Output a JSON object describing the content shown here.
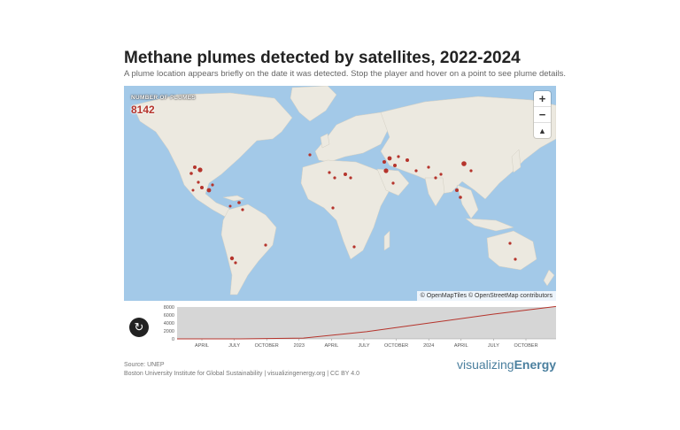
{
  "title": "Methane plumes detected by satellites, 2022-2024",
  "subtitle": "A plume location appears briefly on the date it was detected. Stop the player and hover on a point to see plume details.",
  "counter": {
    "label": "NUMBER OF PLUMES",
    "value": "8142"
  },
  "map_controls": {
    "zoom_in": "+",
    "zoom_out": "−",
    "reset_north": "▲"
  },
  "attribution": "© OpenMapTiles © OpenStreetMap contributors",
  "timeline": {
    "y_ticks": [
      "8000",
      "6000",
      "4000",
      "2000",
      "0"
    ],
    "x_ticks": [
      "APRIL",
      "JULY",
      "OCTOBER",
      "2023",
      "APRIL",
      "JULY",
      "OCTOBER",
      "2024",
      "APRIL",
      "JULY",
      "OCTOBER"
    ],
    "replay_icon": "replay-icon"
  },
  "source": {
    "line1": "Source: UNEP",
    "line2": "Boston University Institute for Global Sustainability | visualizingenergy.org | CC BY 4.0"
  },
  "brand": {
    "part1": "visualizing",
    "part2": "Energy"
  },
  "colors": {
    "ocean": "#a3c9e8",
    "land": "#ece9e0",
    "plume": "#b5342c",
    "timeline_bg": "#d6d6d6"
  },
  "chart_data": {
    "type": "area",
    "x": [
      "2022-01",
      "2022-07",
      "2023-01",
      "2023-07",
      "2024-01",
      "2024-07",
      "2024-12"
    ],
    "values": [
      0,
      0,
      200,
      1800,
      4000,
      6200,
      8142
    ],
    "ylim": [
      0,
      8000
    ]
  }
}
